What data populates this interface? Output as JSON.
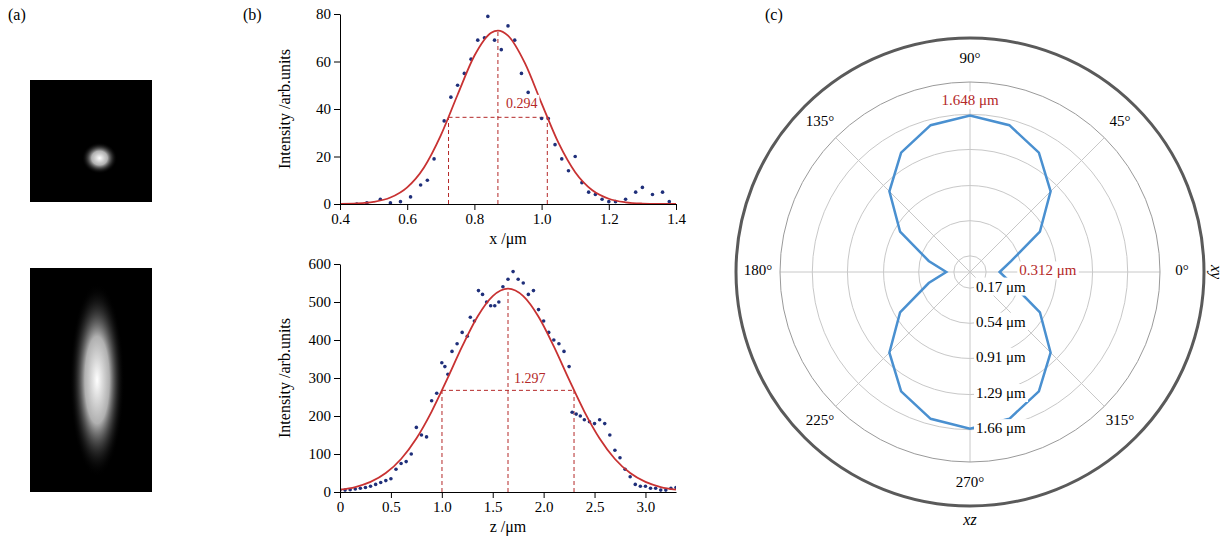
{
  "chart_data": [
    {
      "type": "image",
      "label": "(a)"
    },
    {
      "type": "image"
    },
    {
      "type": "scatter",
      "label": "(b)",
      "xlabel": "x /μm",
      "ylabel": "Intensity /arb.units",
      "xlim": [
        0.4,
        1.4
      ],
      "ylim": [
        0,
        80
      ],
      "xticks": [
        0.4,
        0.6,
        0.8,
        {
          "value": 1,
          "label": "1.0"
        },
        1.2,
        1.4
      ],
      "yticks": [
        0,
        20,
        40,
        60,
        80
      ],
      "series": [
        {
          "type": "scatter",
          "marker": "circle",
          "color": "#1f2f7a",
          "x": [
            0.45,
            0.48,
            0.52,
            0.55,
            0.58,
            0.61,
            0.64,
            0.66,
            0.68,
            0.71,
            0.73,
            0.75,
            0.77,
            0.79,
            0.81,
            0.83,
            0.84,
            0.86,
            0.88,
            0.9,
            0.92,
            0.94,
            0.96,
            0.98,
            1.0,
            1.02,
            1.04,
            1.06,
            1.08,
            1.1,
            1.12,
            1.14,
            1.16,
            1.18,
            1.2,
            1.22,
            1.25,
            1.28,
            1.3,
            1.33,
            1.36,
            1.38
          ],
          "values": [
            0,
            0.5,
            2,
            0.5,
            1,
            3,
            8,
            10,
            19,
            35,
            45,
            50,
            55,
            61,
            69,
            70,
            79,
            69,
            65,
            75,
            69,
            55,
            47,
            45,
            36,
            36,
            25,
            19,
            14,
            20,
            9,
            5,
            4,
            2,
            1,
            1,
            2,
            5,
            7,
            4,
            5,
            1
          ]
        },
        {
          "type": "line",
          "line_style": "solid",
          "color": "#c83232",
          "x": [
            0.4,
            0.45,
            0.5,
            0.55,
            0.6,
            0.65,
            0.7,
            0.75,
            0.8,
            0.85,
            0.87,
            0.9,
            0.95,
            1.0,
            1.05,
            1.1,
            1.15,
            1.2,
            1.25,
            1.3,
            1.35,
            1.4
          ],
          "values": [
            0.06,
            0.25,
            0.9,
            2.73,
            7.03,
            15.4,
            28.9,
            46,
            62.4,
            72.1,
            73,
            70.9,
            59.4,
            42.4,
            25.8,
            13.4,
            5.9,
            2.22,
            0.71,
            0.19,
            0.04,
            0.01
          ]
        }
      ],
      "peak": {
        "x": 0.87,
        "y": 73
      },
      "half_max": {
        "x0": 0.723,
        "x1": 1.017,
        "y": 36.5
      },
      "annotations": [
        {
          "text": "0.294",
          "x": 0.885,
          "y": 41
        }
      ]
    },
    {
      "type": "scatter",
      "xlabel": "z /μm",
      "ylabel": "Intensity /arb.units",
      "xlim": [
        0,
        3.3
      ],
      "ylim": [
        0,
        600
      ],
      "xticks": [
        0,
        0.5,
        {
          "value": 1,
          "label": "1.0"
        },
        1.5,
        {
          "value": 2,
          "label": "2.0"
        },
        2.5,
        {
          "value": 3,
          "label": "3.0"
        }
      ],
      "yticks": [
        0,
        100,
        200,
        300,
        400,
        500,
        600
      ],
      "series": [
        {
          "type": "scatter",
          "marker": "circle",
          "color": "#1f2f7a",
          "x": [
            0,
            0.05,
            0.1,
            0.15,
            0.2,
            0.25,
            0.3,
            0.35,
            0.4,
            0.45,
            0.5,
            0.55,
            0.6,
            0.65,
            0.7,
            0.75,
            0.8,
            0.85,
            0.9,
            0.95,
            1.0,
            1.03,
            1.06,
            1.1,
            1.15,
            1.2,
            1.25,
            1.28,
            1.32,
            1.36,
            1.4,
            1.44,
            1.48,
            1.52,
            1.56,
            1.6,
            1.65,
            1.7,
            1.75,
            1.8,
            1.85,
            1.9,
            1.95,
            2.0,
            2.05,
            2.1,
            2.15,
            2.2,
            2.25,
            2.28,
            2.32,
            2.36,
            2.4,
            2.45,
            2.5,
            2.55,
            2.6,
            2.65,
            2.7,
            2.75,
            2.8,
            2.85,
            2.9,
            2.95,
            3.0,
            3.05,
            3.1,
            3.15,
            3.2,
            3.25,
            3.3
          ],
          "values": [
            5,
            5,
            6,
            8,
            10,
            12,
            15,
            20,
            25,
            30,
            35,
            60,
            75,
            80,
            100,
            170,
            150,
            145,
            240,
            260,
            340,
            330,
            310,
            370,
            390,
            420,
            410,
            460,
            450,
            530,
            520,
            500,
            490,
            490,
            500,
            540,
            560,
            580,
            560,
            550,
            520,
            530,
            480,
            450,
            420,
            400,
            390,
            370,
            330,
            210,
            205,
            200,
            190,
            185,
            180,
            190,
            180,
            150,
            110,
            90,
            60,
            40,
            20,
            15,
            15,
            10,
            10,
            5,
            5,
            10,
            12
          ]
        },
        {
          "type": "line",
          "line_style": "solid",
          "color": "#c83232",
          "x": [
            0,
            0.15,
            0.3,
            0.45,
            0.6,
            0.75,
            0.9,
            1.05,
            1.2,
            1.35,
            1.5,
            1.65,
            1.8,
            1.95,
            2.1,
            2.25,
            2.4,
            2.55,
            2.7,
            2.85,
            3.0,
            3.15,
            3.3
          ],
          "values": [
            6,
            13.1,
            26.5,
            49.9,
            86.9,
            140.8,
            211.7,
            295.6,
            383.2,
            461.3,
            515.5,
            535,
            515.5,
            461.3,
            383.2,
            295.6,
            211.7,
            140.8,
            86.9,
            49.9,
            26.5,
            13.1,
            6
          ]
        }
      ],
      "peak": {
        "x": 1.65,
        "y": 535
      },
      "half_max": {
        "x0": 1.0015,
        "x1": 2.2985,
        "y": 267.5
      },
      "annotations": [
        {
          "text": "1.297",
          "x": 1.68,
          "y": 290
        }
      ]
    },
    {
      "type": "polar",
      "label": "(c)",
      "grid": true,
      "color": "#4a90d0",
      "line_style": "solid",
      "xlim": [
        0,
        360
      ],
      "ylim": [
        0,
        2
      ],
      "xticks": [
        {
          "value": 0,
          "label": "0°"
        },
        {
          "value": 45,
          "label": "45°"
        },
        {
          "value": 90,
          "label": "90°"
        },
        {
          "value": 135,
          "label": "135°"
        },
        {
          "value": 180,
          "label": "180°"
        },
        {
          "value": 225,
          "label": "225°"
        },
        {
          "value": 270,
          "label": "270°"
        },
        {
          "value": 315,
          "label": "315°"
        }
      ],
      "yticks": [
        {
          "value": 0.17,
          "label": "0.17 μm"
        },
        {
          "value": 0.54,
          "label": "0.54 μm"
        },
        {
          "value": 0.91,
          "label": "0.91 μm"
        },
        {
          "value": 1.29,
          "label": "1.29 μm"
        },
        {
          "value": 1.66,
          "label": "1.66 μm"
        }
      ],
      "x": [
        0,
        15,
        30,
        45,
        60,
        75,
        90,
        105,
        120,
        135,
        150,
        165,
        180,
        195,
        210,
        225,
        240,
        255,
        270,
        285,
        300,
        315,
        330,
        345
      ],
      "values": [
        0.312,
        0.45,
        0.85,
        1.2,
        1.45,
        1.6,
        1.648,
        1.6,
        1.45,
        1.2,
        0.85,
        0.45,
        0.25,
        0.45,
        0.85,
        1.2,
        1.45,
        1.6,
        1.65,
        1.6,
        1.45,
        1.2,
        0.85,
        0.45
      ],
      "annotations": [
        {
          "text": "1.648 μm",
          "x": 90,
          "y": 1.79
        },
        {
          "text": "0.312 μm",
          "x": 0,
          "y": 0.82
        }
      ],
      "plane_labels": [
        {
          "text": "xy",
          "x": 0,
          "y": 2.58
        },
        {
          "text": "xz",
          "x": 270,
          "y": 2.62
        }
      ]
    }
  ]
}
